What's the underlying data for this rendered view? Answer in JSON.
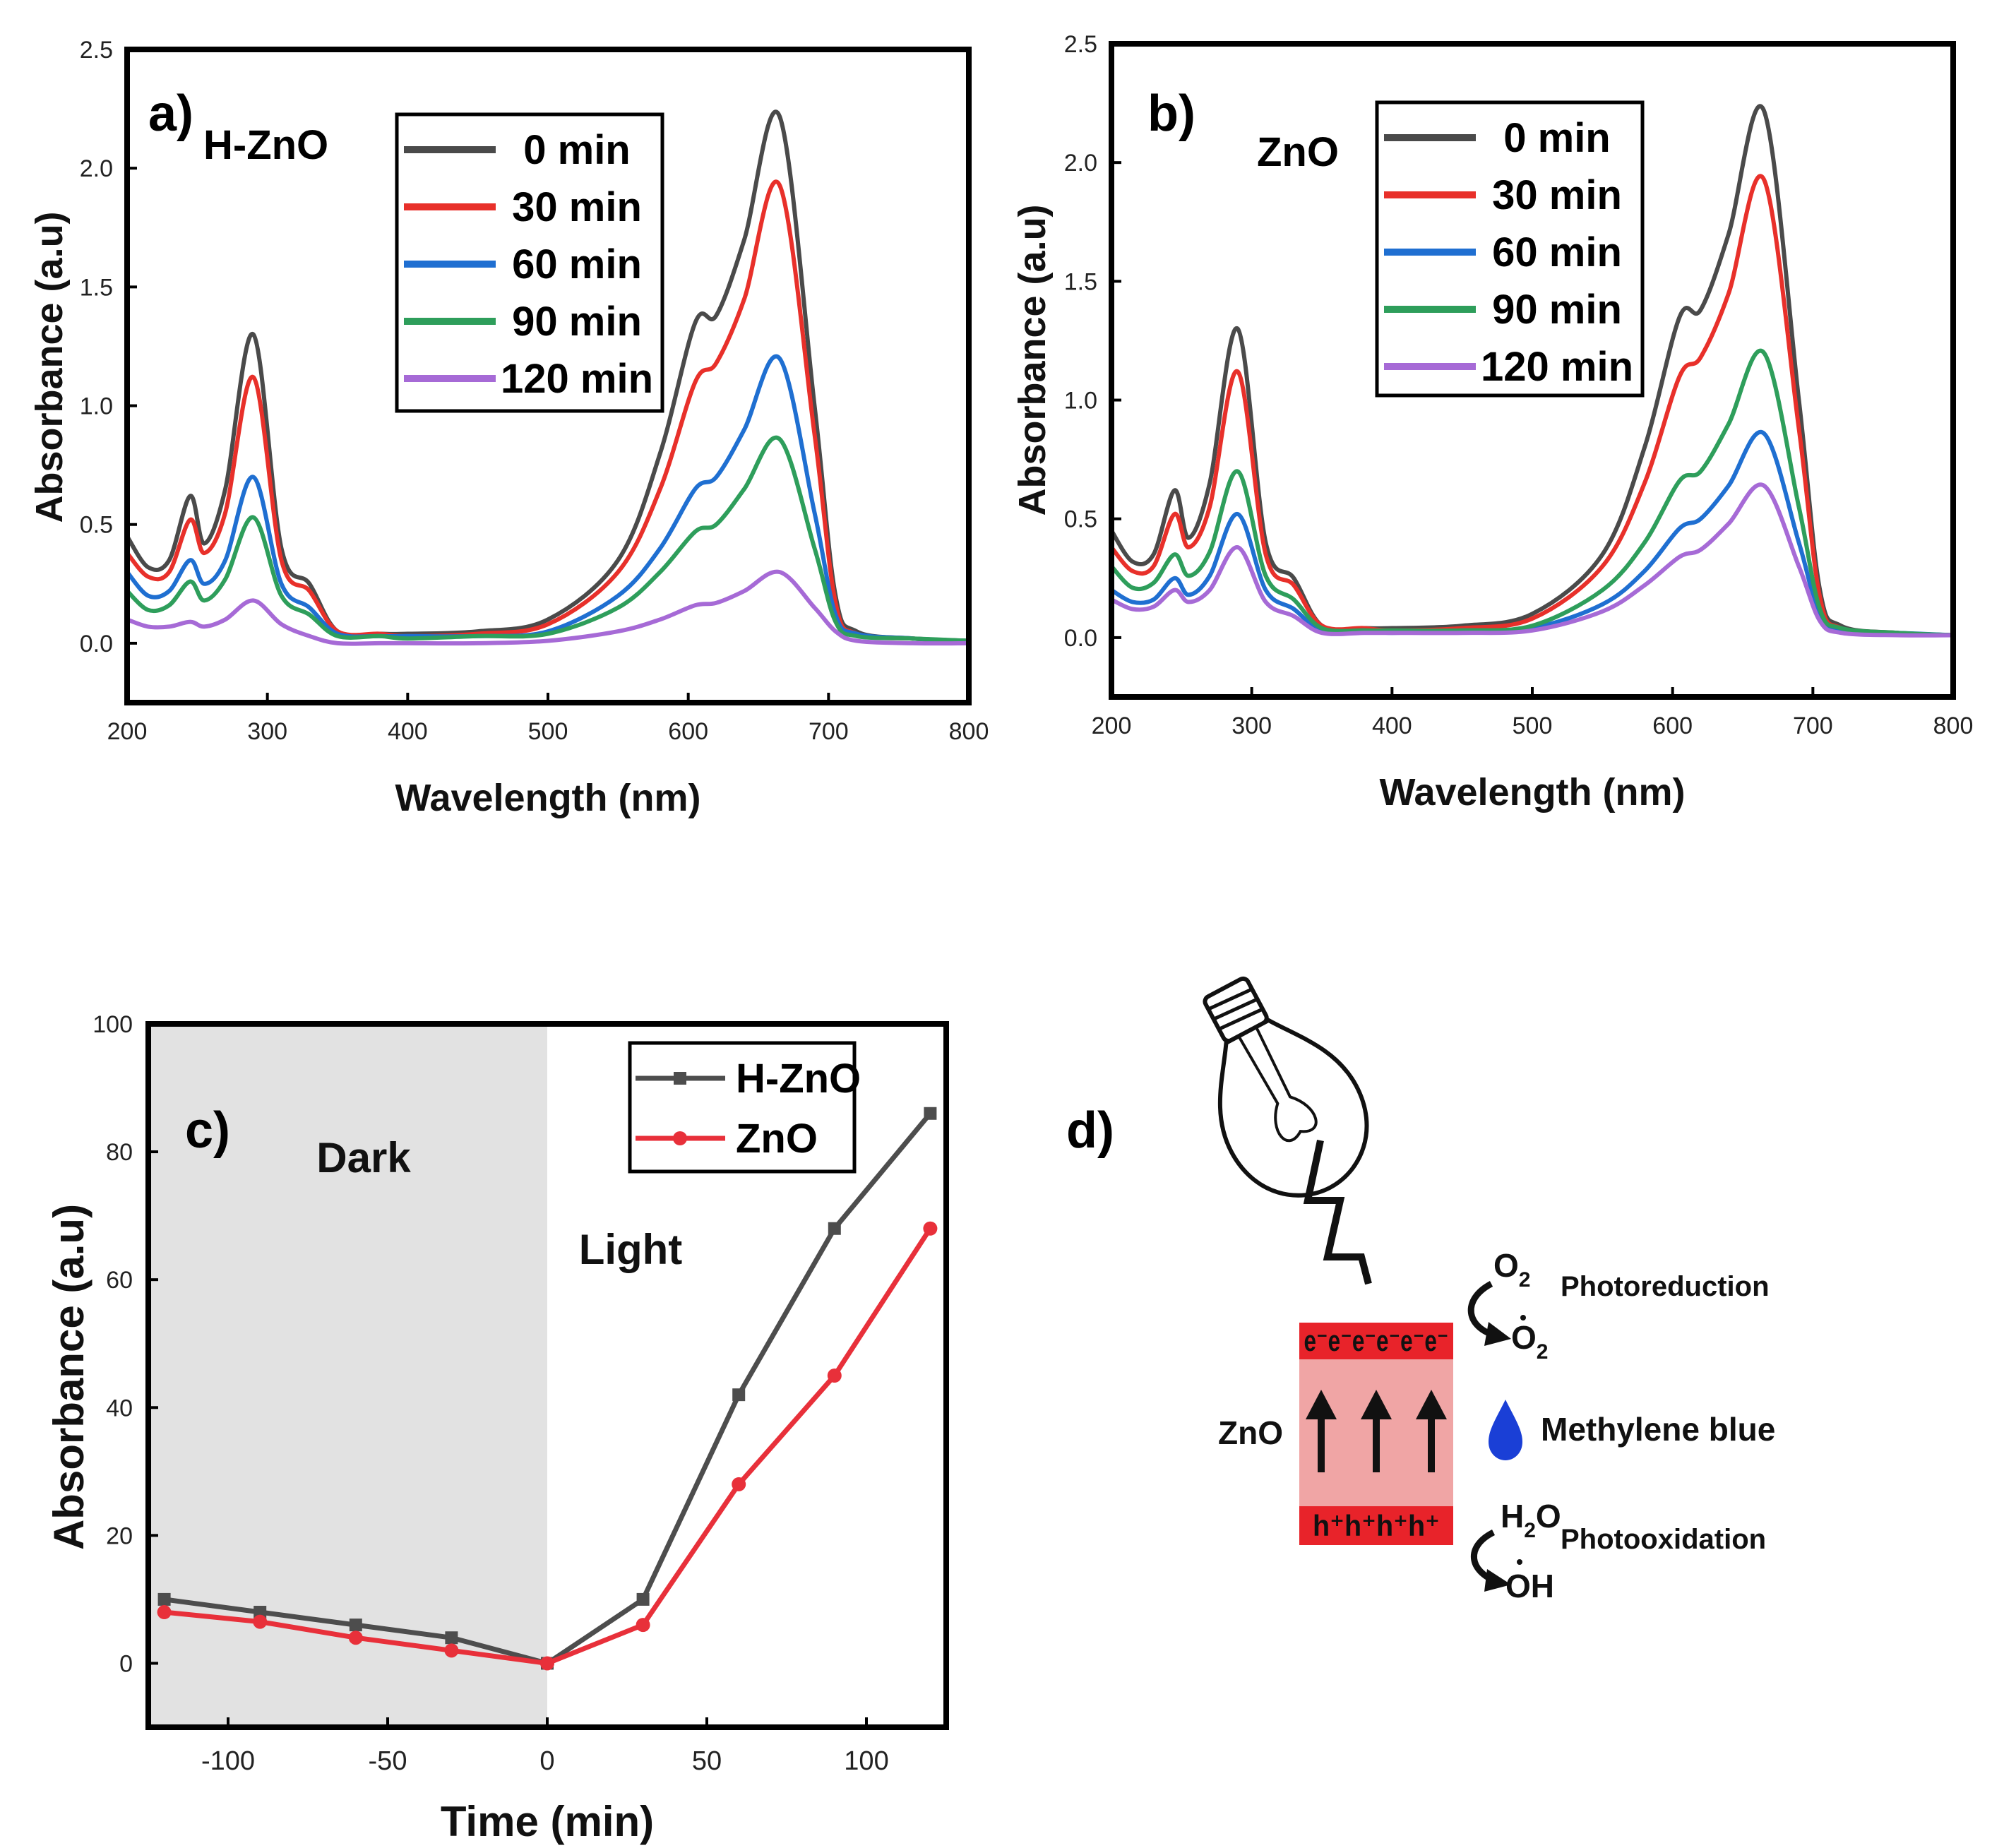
{
  "chart_data": [
    {
      "type": "line",
      "panel": "a)",
      "sample": "H-ZnO",
      "xlabel": "Wavelength (nm)",
      "ylabel": "Absorbance (a.u)",
      "xlim": [
        200,
        800
      ],
      "ylim": [
        -0.25,
        2.5
      ],
      "xticks": [
        "200",
        "300",
        "400",
        "500",
        "600",
        "700",
        "800"
      ],
      "yticks": [
        "0.0",
        "0.5",
        "1.0",
        "1.5",
        "2.0",
        "2.5"
      ],
      "legend_position": "top-center",
      "series": [
        {
          "name": "0 min",
          "color": "#4a4a4a",
          "x": [
            200,
            215,
            230,
            245,
            255,
            270,
            290,
            310,
            330,
            350,
            380,
            400,
            450,
            500,
            550,
            580,
            605,
            620,
            640,
            665,
            690,
            705,
            720,
            760,
            800
          ],
          "values": [
            0.45,
            0.32,
            0.35,
            0.62,
            0.42,
            0.65,
            1.3,
            0.4,
            0.25,
            0.05,
            0.04,
            0.04,
            0.05,
            0.1,
            0.35,
            0.8,
            1.35,
            1.38,
            1.7,
            2.22,
            1.0,
            0.2,
            0.05,
            0.02,
            0.01
          ]
        },
        {
          "name": "30 min",
          "color": "#e8302a",
          "x": [
            200,
            215,
            230,
            245,
            255,
            270,
            290,
            310,
            330,
            350,
            380,
            400,
            450,
            500,
            550,
            580,
            605,
            620,
            640,
            665,
            690,
            705,
            720,
            760,
            800
          ],
          "values": [
            0.38,
            0.28,
            0.3,
            0.52,
            0.38,
            0.55,
            1.12,
            0.35,
            0.22,
            0.05,
            0.04,
            0.03,
            0.04,
            0.08,
            0.3,
            0.65,
            1.1,
            1.18,
            1.45,
            1.93,
            0.88,
            0.17,
            0.04,
            0.02,
            0.01
          ]
        },
        {
          "name": "60 min",
          "color": "#1f6fd1",
          "x": [
            200,
            215,
            230,
            245,
            255,
            270,
            290,
            310,
            330,
            350,
            380,
            400,
            450,
            500,
            550,
            580,
            605,
            620,
            640,
            665,
            690,
            705,
            720,
            760,
            800
          ],
          "values": [
            0.3,
            0.2,
            0.22,
            0.35,
            0.25,
            0.35,
            0.7,
            0.25,
            0.15,
            0.04,
            0.03,
            0.03,
            0.03,
            0.05,
            0.2,
            0.4,
            0.65,
            0.7,
            0.9,
            1.2,
            0.55,
            0.12,
            0.04,
            0.02,
            0.01
          ]
        },
        {
          "name": "90 min",
          "color": "#2e9e5b",
          "x": [
            200,
            215,
            230,
            245,
            255,
            270,
            290,
            310,
            330,
            350,
            380,
            400,
            450,
            500,
            550,
            580,
            605,
            620,
            640,
            665,
            690,
            705,
            720,
            760,
            800
          ],
          "values": [
            0.22,
            0.14,
            0.16,
            0.26,
            0.18,
            0.27,
            0.53,
            0.2,
            0.12,
            0.03,
            0.03,
            0.02,
            0.03,
            0.04,
            0.15,
            0.3,
            0.47,
            0.5,
            0.65,
            0.86,
            0.4,
            0.09,
            0.03,
            0.02,
            0.01
          ]
        },
        {
          "name": "120 min",
          "color": "#a66ad6",
          "x": [
            200,
            215,
            230,
            245,
            255,
            270,
            290,
            310,
            330,
            350,
            380,
            400,
            450,
            500,
            550,
            580,
            605,
            620,
            640,
            665,
            690,
            705,
            720,
            760,
            800
          ],
          "values": [
            0.1,
            0.07,
            0.07,
            0.09,
            0.07,
            0.1,
            0.18,
            0.08,
            0.03,
            0.0,
            0.0,
            0.0,
            0.0,
            0.01,
            0.05,
            0.1,
            0.16,
            0.17,
            0.22,
            0.3,
            0.15,
            0.05,
            0.01,
            0.0,
            0.0
          ]
        }
      ]
    },
    {
      "type": "line",
      "panel": "b)",
      "sample": "ZnO",
      "xlabel": "Wavelength (nm)",
      "ylabel": "Absorbance (a.u)",
      "xlim": [
        200,
        800
      ],
      "ylim": [
        -0.25,
        2.5
      ],
      "xticks": [
        "200",
        "300",
        "400",
        "500",
        "600",
        "700",
        "800"
      ],
      "yticks": [
        "0.0",
        "0.5",
        "1.0",
        "1.5",
        "2.0",
        "2.5"
      ],
      "legend_position": "top-center",
      "series": [
        {
          "name": "0 min",
          "color": "#4a4a4a",
          "x": [
            200,
            215,
            230,
            245,
            255,
            270,
            290,
            310,
            330,
            350,
            380,
            400,
            450,
            500,
            550,
            580,
            605,
            620,
            640,
            665,
            690,
            705,
            720,
            760,
            800
          ],
          "values": [
            0.45,
            0.32,
            0.35,
            0.62,
            0.42,
            0.65,
            1.3,
            0.4,
            0.25,
            0.05,
            0.04,
            0.04,
            0.05,
            0.1,
            0.35,
            0.8,
            1.35,
            1.38,
            1.7,
            2.22,
            1.0,
            0.2,
            0.05,
            0.02,
            0.01
          ]
        },
        {
          "name": "30 min",
          "color": "#e8302a",
          "x": [
            200,
            215,
            230,
            245,
            255,
            270,
            290,
            310,
            330,
            350,
            380,
            400,
            450,
            500,
            550,
            580,
            605,
            620,
            640,
            665,
            690,
            705,
            720,
            760,
            800
          ],
          "values": [
            0.38,
            0.28,
            0.3,
            0.52,
            0.38,
            0.55,
            1.12,
            0.35,
            0.22,
            0.05,
            0.04,
            0.03,
            0.04,
            0.08,
            0.3,
            0.65,
            1.1,
            1.18,
            1.45,
            1.93,
            0.88,
            0.17,
            0.04,
            0.02,
            0.01
          ]
        },
        {
          "name": "60 min",
          "color": "#1f6fd1",
          "x": [
            200,
            215,
            230,
            245,
            255,
            270,
            290,
            310,
            330,
            350,
            380,
            400,
            450,
            500,
            550,
            580,
            605,
            620,
            640,
            665,
            690,
            705,
            720,
            760,
            800
          ],
          "values": [
            0.2,
            0.15,
            0.16,
            0.25,
            0.18,
            0.26,
            0.52,
            0.2,
            0.12,
            0.03,
            0.03,
            0.02,
            0.03,
            0.04,
            0.14,
            0.28,
            0.46,
            0.5,
            0.64,
            0.86,
            0.4,
            0.09,
            0.03,
            0.02,
            0.01
          ]
        },
        {
          "name": "90 min",
          "color": "#2e9e5b",
          "x": [
            200,
            215,
            230,
            245,
            255,
            270,
            290,
            310,
            330,
            350,
            380,
            400,
            450,
            500,
            550,
            580,
            605,
            620,
            640,
            665,
            690,
            705,
            720,
            760,
            800
          ],
          "values": [
            0.3,
            0.21,
            0.23,
            0.35,
            0.26,
            0.36,
            0.7,
            0.26,
            0.16,
            0.04,
            0.03,
            0.03,
            0.03,
            0.05,
            0.2,
            0.4,
            0.66,
            0.7,
            0.9,
            1.2,
            0.55,
            0.12,
            0.04,
            0.02,
            0.01
          ]
        },
        {
          "name": "120 min",
          "color": "#a66ad6",
          "x": [
            200,
            215,
            230,
            245,
            255,
            270,
            290,
            310,
            330,
            350,
            380,
            400,
            450,
            500,
            550,
            580,
            605,
            620,
            640,
            665,
            690,
            705,
            720,
            760,
            800
          ],
          "values": [
            0.16,
            0.12,
            0.13,
            0.2,
            0.15,
            0.2,
            0.38,
            0.15,
            0.09,
            0.02,
            0.02,
            0.02,
            0.02,
            0.03,
            0.11,
            0.22,
            0.34,
            0.37,
            0.48,
            0.64,
            0.3,
            0.07,
            0.02,
            0.01,
            0.01
          ]
        }
      ]
    },
    {
      "type": "line",
      "panel": "c)",
      "xlabel": "Time (min)",
      "ylabel": "Absorbance (a.u)",
      "xlim": [
        -125,
        125
      ],
      "ylim": [
        -10,
        100
      ],
      "xticks": [
        "-100",
        "-50",
        "0",
        "50",
        "100"
      ],
      "yticks": [
        "0",
        "20",
        "40",
        "60",
        "80",
        "100"
      ],
      "regions": [
        {
          "label": "Dark",
          "x_range": [
            -125,
            0
          ],
          "shaded": true
        },
        {
          "label": "Light",
          "x_range": [
            0,
            125
          ],
          "shaded": false
        }
      ],
      "legend_position": "top-right",
      "series": [
        {
          "name": "H-ZnO",
          "color": "#4d4d4d",
          "marker": "square",
          "x": [
            -120,
            -90,
            -60,
            -30,
            0,
            30,
            60,
            90,
            120
          ],
          "values": [
            10,
            8,
            6,
            4,
            0,
            10,
            42,
            68,
            86
          ]
        },
        {
          "name": "ZnO",
          "color": "#e8303a",
          "marker": "circle",
          "x": [
            -120,
            -90,
            -60,
            -30,
            0,
            30,
            60,
            90,
            120
          ],
          "values": [
            8,
            6.5,
            4,
            2,
            0,
            6,
            28,
            45,
            68
          ]
        }
      ]
    }
  ],
  "diagram": {
    "panel": "d)",
    "material": "ZnO",
    "conduction_band": "e⁻e⁻e⁻e⁻e⁻e⁻",
    "valence_band": "h⁺h⁺h⁺h⁺",
    "reduction_reactant": "O",
    "reduction_reactant_sub": "2",
    "reduction_product": "O",
    "reduction_product_sub": "2",
    "reduction_label": "Photoreduction",
    "pollutant": "Methylene blue",
    "oxidation_reactant": "H",
    "oxidation_reactant_sub": "2",
    "oxidation_reactant_tail": "O",
    "oxidation_product": "OH",
    "oxidation_label": "Photooxidation",
    "colors": {
      "band": "#e8232a",
      "gap": "#f0a5a5",
      "drop": "#1a3fd6"
    }
  }
}
